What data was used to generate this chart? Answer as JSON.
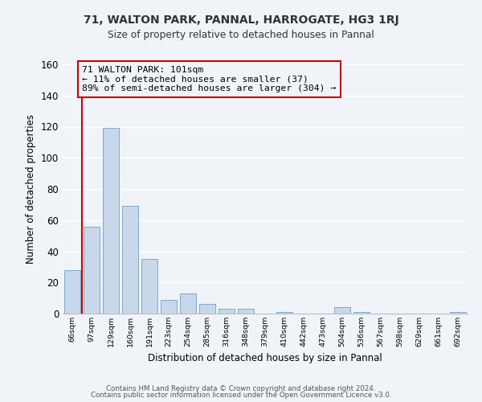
{
  "title1": "71, WALTON PARK, PANNAL, HARROGATE, HG3 1RJ",
  "title2": "Size of property relative to detached houses in Pannal",
  "xlabel": "Distribution of detached houses by size in Pannal",
  "ylabel": "Number of detached properties",
  "categories": [
    "66sqm",
    "97sqm",
    "129sqm",
    "160sqm",
    "191sqm",
    "223sqm",
    "254sqm",
    "285sqm",
    "316sqm",
    "348sqm",
    "379sqm",
    "410sqm",
    "442sqm",
    "473sqm",
    "504sqm",
    "536sqm",
    "567sqm",
    "598sqm",
    "629sqm",
    "661sqm",
    "692sqm"
  ],
  "values": [
    28,
    56,
    119,
    69,
    35,
    9,
    13,
    6,
    3,
    3,
    0,
    1,
    0,
    0,
    4,
    1,
    0,
    0,
    0,
    0,
    1
  ],
  "bar_color": "#c8d8ea",
  "bar_edge_color": "#7aaaca",
  "annotation_line1": "71 WALTON PARK: 101sqm",
  "annotation_line2": "← 11% of detached houses are smaller (37)",
  "annotation_line3": "89% of semi-detached houses are larger (304) →",
  "annotation_box_edge_color": "#cc0000",
  "ylim": [
    0,
    160
  ],
  "yticks": [
    0,
    20,
    40,
    60,
    80,
    100,
    120,
    140,
    160
  ],
  "footer1": "Contains HM Land Registry data © Crown copyright and database right 2024.",
  "footer2": "Contains public sector information licensed under the Open Government Licence v3.0.",
  "background_color": "#f0f4f8",
  "grid_color": "#ffffff",
  "marker_line_color": "#cc0000"
}
